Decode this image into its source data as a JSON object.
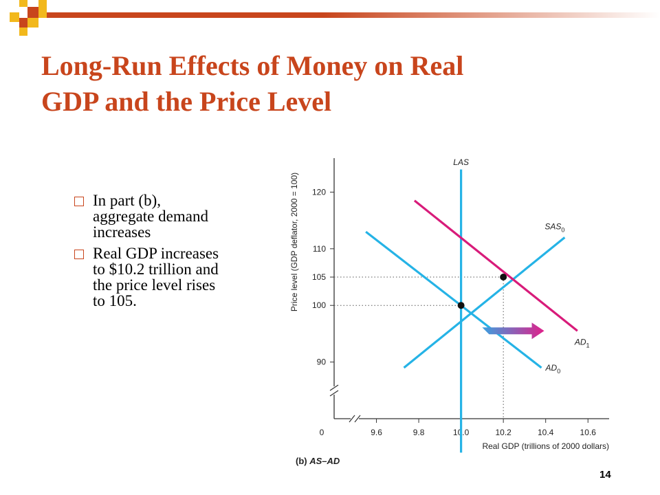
{
  "slide": {
    "title_line1": "Long-Run Effects of Money on Real",
    "title_line2": "GDP and the Price Level",
    "bullets": [
      "In part (b), aggregate demand increases",
      "Real GDP increases to $10.2 trillion and the price level rises to 105."
    ],
    "page_number": "14"
  },
  "colors": {
    "title": "#c8451c",
    "las": "#25b3e6",
    "sas": "#25b3e6",
    "ad0": "#25b3e6",
    "ad1": "#d81b7a",
    "arrow_start": "#3aa0e0",
    "arrow_end": "#e0208a"
  },
  "chart_data": {
    "type": "line",
    "title": "",
    "caption_part": "(b)",
    "caption_name": "AS–AD",
    "xlabel": "Real GDP (trillions of 2000 dollars)",
    "ylabel": "Price level (GDP deflator, 2000 = 100)",
    "xlim": [
      9.4,
      10.7
    ],
    "ylim": [
      80,
      126
    ],
    "x_ticks": [
      9.6,
      9.8,
      10.0,
      10.2,
      10.4,
      10.6
    ],
    "x_tick_labels": [
      "9.6",
      "9.8",
      "10.0",
      "10.2",
      "10.4",
      "10.6"
    ],
    "y_ticks": [
      90,
      100,
      105,
      110,
      120
    ],
    "y_tick_labels": [
      "90",
      "100",
      "105",
      "110",
      "120"
    ],
    "origin_label": "0",
    "axis_breaks": true,
    "grid": false,
    "series": [
      {
        "name": "LAS",
        "sub": "",
        "key": "las",
        "x": [
          10.0,
          10.0
        ],
        "y": [
          74,
          124
        ]
      },
      {
        "name": "SAS",
        "sub": "0",
        "key": "sas",
        "x": [
          9.73,
          10.49
        ],
        "y": [
          89,
          112
        ]
      },
      {
        "name": "AD",
        "sub": "0",
        "key": "ad0",
        "x": [
          9.55,
          10.38
        ],
        "y": [
          113,
          89
        ]
      },
      {
        "name": "AD",
        "sub": "1",
        "key": "ad1",
        "x": [
          9.78,
          10.55
        ],
        "y": [
          118.5,
          95.5
        ]
      }
    ],
    "equilibrium_points": [
      {
        "x": 10.0,
        "y": 100
      },
      {
        "x": 10.2,
        "y": 105
      }
    ],
    "shift_arrow": {
      "from": [
        10.1,
        95.5
      ],
      "to": [
        10.38,
        95.5
      ]
    }
  }
}
